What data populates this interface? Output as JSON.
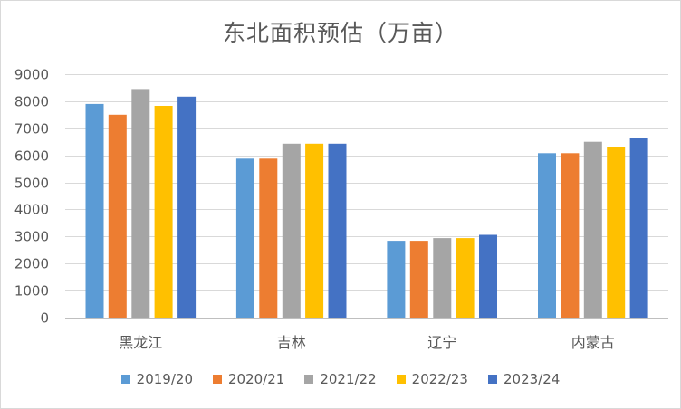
{
  "chart_data": {
    "type": "bar",
    "title": "东北面积预估（万亩）",
    "xlabel": "",
    "ylabel": "",
    "ylim": [
      0,
      9000
    ],
    "yticks": [
      0,
      1000,
      2000,
      3000,
      4000,
      5000,
      6000,
      7000,
      8000,
      9000
    ],
    "grid": true,
    "legend_position": "bottom",
    "categories": [
      "黑龙江",
      "吉林",
      "辽宁",
      "内蒙古"
    ],
    "series": [
      {
        "name": "2019/20",
        "color": "#5b9bd5",
        "values": [
          7900,
          5880,
          2840,
          6080
        ]
      },
      {
        "name": "2020/21",
        "color": "#ed7d31",
        "values": [
          7500,
          5880,
          2840,
          6080
        ]
      },
      {
        "name": "2021/22",
        "color": "#a5a5a5",
        "values": [
          8450,
          6430,
          2940,
          6500
        ]
      },
      {
        "name": "2022/23",
        "color": "#ffc000",
        "values": [
          7830,
          6430,
          2940,
          6300
        ]
      },
      {
        "name": "2023/24",
        "color": "#4472c4",
        "values": [
          8170,
          6430,
          3060,
          6640
        ]
      }
    ]
  }
}
